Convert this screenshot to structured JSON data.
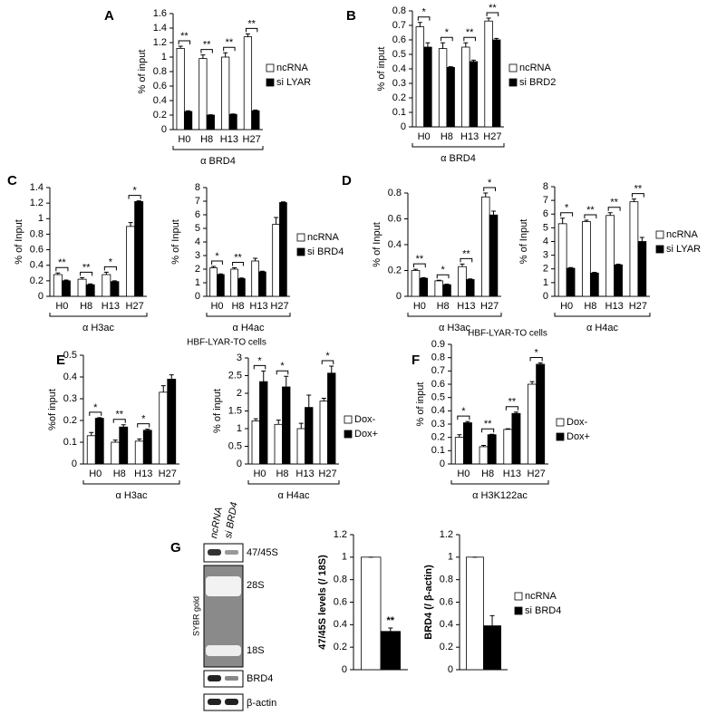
{
  "blot": {
    "panel": "G",
    "lanes": [
      "ncRNA",
      "si BRD4"
    ],
    "stain": "SYBR gold",
    "bands": [
      "47/45S",
      "28S",
      "18S",
      "BRD4",
      "β-actin"
    ]
  },
  "chart_data": [
    {
      "type": "bar",
      "panel": "A",
      "ylabel": "% of input",
      "categories": [
        "H0",
        "H8",
        "H13",
        "H27"
      ],
      "group_label": "α BRD4",
      "legend": true,
      "sig_brackets": true,
      "series": [
        {
          "name": "ncRNA",
          "color": "#ffffff",
          "values": [
            1.12,
            0.98,
            1.0,
            1.28
          ],
          "errors": [
            0.03,
            0.05,
            0.06,
            0.04
          ]
        },
        {
          "name": "si LYAR",
          "color": "#000000",
          "values": [
            0.25,
            0.2,
            0.21,
            0.26
          ],
          "errors": [
            0.01,
            0.005,
            0.005,
            0.01
          ]
        }
      ],
      "significance": [
        "**",
        "**",
        "**",
        "**"
      ],
      "ylim": [
        0,
        1.6
      ],
      "yticks": [
        0,
        0.2,
        0.4,
        0.6,
        0.8,
        1,
        1.2,
        1.4,
        1.6
      ]
    },
    {
      "type": "bar",
      "panel": "B",
      "ylabel": "% of input",
      "categories": [
        "H0",
        "H8",
        "H13",
        "H27"
      ],
      "group_label": "α BRD4",
      "legend": true,
      "sig_brackets": true,
      "series": [
        {
          "name": "ncRNA",
          "color": "#ffffff",
          "values": [
            0.69,
            0.54,
            0.55,
            0.73
          ],
          "errors": [
            0.03,
            0.04,
            0.03,
            0.02
          ]
        },
        {
          "name": "si BRD2",
          "color": "#000000",
          "values": [
            0.55,
            0.41,
            0.45,
            0.6
          ],
          "errors": [
            0.03,
            0.005,
            0.01,
            0.01
          ]
        }
      ],
      "significance": [
        "*",
        "*",
        "**",
        "**"
      ],
      "ylim": [
        0,
        0.8
      ],
      "yticks": [
        0,
        0.1,
        0.2,
        0.3,
        0.4,
        0.5,
        0.6,
        0.7,
        0.8
      ]
    },
    {
      "type": "bar",
      "panel": "C",
      "ylabel": "% of Input",
      "categories": [
        "H0",
        "H8",
        "H13",
        "H27"
      ],
      "group_label": "α H3ac",
      "legend": false,
      "sig_brackets": true,
      "series": [
        {
          "color": "#ffffff",
          "values": [
            0.28,
            0.22,
            0.28,
            0.9
          ],
          "errors": [
            0.02,
            0.02,
            0.03,
            0.05
          ]
        },
        {
          "color": "#000000",
          "values": [
            0.2,
            0.15,
            0.19,
            1.22
          ],
          "errors": [
            0.01,
            0.01,
            0.01,
            0.01
          ]
        }
      ],
      "significance": [
        "**",
        "**",
        "*",
        "*"
      ],
      "ylim": [
        0,
        1.4
      ],
      "yticks": [
        0,
        0.2,
        0.4,
        0.6,
        0.8,
        1,
        1.2,
        1.4
      ]
    },
    {
      "type": "bar",
      "ylabel": "% of Input",
      "categories": [
        "H0",
        "H8",
        "H13",
        "H27"
      ],
      "group_label": "α H4ac",
      "legend": true,
      "sig_brackets": true,
      "series": [
        {
          "name": "ncRNA",
          "color": "#ffffff",
          "values": [
            2.1,
            2.0,
            2.6,
            5.3
          ],
          "errors": [
            0.1,
            0.1,
            0.2,
            0.5
          ]
        },
        {
          "name": "si BRD4",
          "color": "#000000",
          "values": [
            1.6,
            1.3,
            1.8,
            6.9
          ],
          "errors": [
            0.05,
            0.05,
            0.05,
            0.05
          ]
        }
      ],
      "significance": [
        "*",
        "**",
        null,
        null
      ],
      "ylim": [
        0,
        8
      ],
      "yticks": [
        0,
        1,
        2,
        3,
        4,
        5,
        6,
        7,
        8
      ]
    },
    {
      "type": "bar",
      "panel": "D",
      "ylabel": "% of Input",
      "categories": [
        "H0",
        "H8",
        "H13",
        "H27"
      ],
      "group_label": "α H3ac",
      "legend": false,
      "sig_brackets": true,
      "series": [
        {
          "color": "#ffffff",
          "values": [
            0.2,
            0.12,
            0.23,
            0.77
          ],
          "errors": [
            0.01,
            0.005,
            0.02,
            0.03
          ]
        },
        {
          "color": "#000000",
          "values": [
            0.14,
            0.09,
            0.13,
            0.63
          ],
          "errors": [
            0.005,
            0.005,
            0.005,
            0.03
          ]
        }
      ],
      "significance": [
        "**",
        "*",
        "**",
        "*"
      ],
      "ylim": [
        0,
        0.8
      ],
      "yticks": [
        0,
        0.2,
        0.4,
        0.6,
        0.8
      ]
    },
    {
      "type": "bar",
      "ylabel": "% of Input",
      "categories": [
        "H0",
        "H8",
        "H13",
        "H27"
      ],
      "group_label": "α H4ac",
      "legend": true,
      "sig_brackets": true,
      "series": [
        {
          "name": "ncRNA",
          "color": "#ffffff",
          "values": [
            5.3,
            5.45,
            5.9,
            6.9
          ],
          "errors": [
            0.4,
            0.1,
            0.2,
            0.2
          ]
        },
        {
          "name": "si LYAR",
          "color": "#000000",
          "values": [
            2.05,
            1.7,
            2.3,
            4.0
          ],
          "errors": [
            0.05,
            0.05,
            0.05,
            0.3
          ]
        }
      ],
      "significance": [
        "*",
        "**",
        "**",
        "**"
      ],
      "ylim": [
        0,
        8
      ],
      "yticks": [
        0,
        1,
        2,
        3,
        4,
        5,
        6,
        7,
        8
      ]
    },
    {
      "type": "bar",
      "panel": "E",
      "title": "HBF-LYAR-TO cells",
      "ylabel": "%of input",
      "categories": [
        "H0",
        "H8",
        "H13",
        "H27"
      ],
      "group_label": "α H3ac",
      "legend": false,
      "sig_brackets": true,
      "series": [
        {
          "color": "#ffffff",
          "values": [
            0.13,
            0.1,
            0.105,
            0.33
          ],
          "errors": [
            0.015,
            0.01,
            0.01,
            0.03
          ]
        },
        {
          "color": "#000000",
          "values": [
            0.21,
            0.17,
            0.155,
            0.39
          ],
          "errors": [
            0.003,
            0.01,
            0.005,
            0.02
          ]
        }
      ],
      "significance": [
        "*",
        "**",
        "*",
        null
      ],
      "ylim": [
        0,
        0.5
      ],
      "yticks": [
        0,
        0.1,
        0.2,
        0.3,
        0.4,
        0.5
      ]
    },
    {
      "type": "bar",
      "ylabel": "% of input",
      "categories": [
        "H0",
        "H8",
        "H13",
        "H27"
      ],
      "group_label": "α H4ac",
      "legend": true,
      "sig_brackets": true,
      "series": [
        {
          "name": "Dox-",
          "color": "#ffffff",
          "values": [
            1.22,
            1.12,
            1.0,
            1.78
          ],
          "errors": [
            0.06,
            0.12,
            0.15,
            0.08
          ]
        },
        {
          "name": "Dox+",
          "color": "#000000",
          "values": [
            2.33,
            2.18,
            1.6,
            2.57
          ],
          "errors": [
            0.3,
            0.3,
            0.35,
            0.2
          ]
        }
      ],
      "significance": [
        "*",
        "*",
        null,
        "*"
      ],
      "ylim": [
        0,
        3
      ],
      "yticks": [
        0,
        0.5,
        1,
        1.5,
        2,
        2.5,
        3
      ]
    },
    {
      "type": "bar",
      "panel": "F",
      "title": "HBF-LYAR-TO cells",
      "ylabel": "% of input",
      "categories": [
        "H0",
        "H8",
        "H13",
        "H27"
      ],
      "group_label": "α H3K122ac",
      "legend": true,
      "sig_brackets": true,
      "series": [
        {
          "name": "Dox-",
          "color": "#ffffff",
          "values": [
            0.2,
            0.13,
            0.26,
            0.6
          ],
          "errors": [
            0.02,
            0.01,
            0.005,
            0.02
          ]
        },
        {
          "name": "Dox+",
          "color": "#000000",
          "values": [
            0.31,
            0.22,
            0.38,
            0.75
          ],
          "errors": [
            0.01,
            0.003,
            0.01,
            0.01
          ]
        }
      ],
      "significance": [
        "*",
        "**",
        "**",
        "*"
      ],
      "ylim": [
        0,
        0.9
      ],
      "yticks": [
        0,
        0.1,
        0.2,
        0.3,
        0.4,
        0.5,
        0.6,
        0.7,
        0.8,
        0.9
      ]
    },
    {
      "type": "bar",
      "ylabel": "47/45S levels (/ 18S)",
      "categories": [
        null
      ],
      "legend": false,
      "sig_brackets": false,
      "series": [
        {
          "color": "#ffffff",
          "values": [
            1
          ],
          "errors": [
            0
          ]
        },
        {
          "color": "#000000",
          "values": [
            0.34
          ],
          "errors": [
            0.03
          ]
        }
      ],
      "significance": [
        "**"
      ],
      "ylim": [
        0,
        1.2
      ],
      "yticks": [
        0,
        0.2,
        0.4,
        0.6,
        0.8,
        1,
        1.2
      ]
    },
    {
      "type": "bar",
      "ylabel": "BRD4 (/ β-actin)",
      "categories": [
        null
      ],
      "legend": true,
      "sig_brackets": false,
      "series": [
        {
          "name": "ncRNA",
          "color": "#ffffff",
          "values": [
            1
          ],
          "errors": [
            0
          ]
        },
        {
          "name": "si BRD4",
          "color": "#000000",
          "values": [
            0.39
          ],
          "errors": [
            0.09
          ]
        }
      ],
      "ylim": [
        0,
        1.2
      ],
      "yticks": [
        0,
        0.2,
        0.4,
        0.6,
        0.8,
        1,
        1.2
      ]
    }
  ]
}
